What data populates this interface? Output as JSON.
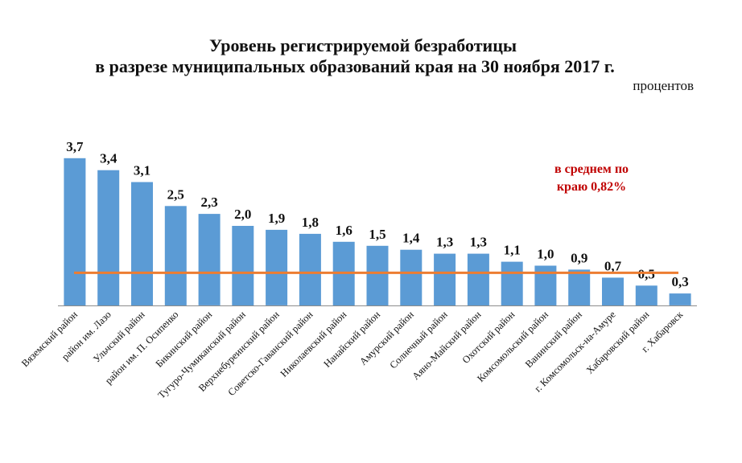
{
  "title_line1": "Уровень регистрируемой безработицы",
  "title_line2": "в разрезе муниципальных образований края на 30 ноября 2017 г.",
  "units": "процентов",
  "average_note_line1": "в среднем по",
  "average_note_line2": "краю 0,82%",
  "colors": {
    "bar": "#5b9bd5",
    "average_line": "#ed7d31",
    "note": "#c00000",
    "axis": "#8c8c8c"
  },
  "chart_data": {
    "type": "bar",
    "title": "Уровень регистрируемой безработицы в разрезе муниципальных образований края на 30 ноября 2017 г.",
    "ylabel": "процентов",
    "xlabel": "",
    "ylim": [
      0,
      4.0
    ],
    "average": 0.82,
    "average_label": "в среднем по краю 0,82%",
    "categories": [
      "Вяземский район",
      "район им. Лазо",
      "Ульчский район",
      "район им. П. Осипенко",
      "Бикинский район",
      "Тугуро-Чумиканский район",
      "Верхнебуреинский район",
      "Советско-Гаванский район",
      "Николаевский район",
      "Нанайский район",
      "Амурский район",
      "Солнечный район",
      "Аяно-Майский район",
      "Охотский район",
      "Комсомольский район",
      "Ванинский район",
      "г. Комсомольск-на-Амуре",
      "Хабаровский район",
      "г. Хабаровск"
    ],
    "values": [
      3.7,
      3.4,
      3.1,
      2.5,
      2.3,
      2.0,
      1.9,
      1.8,
      1.6,
      1.5,
      1.4,
      1.3,
      1.3,
      1.1,
      1.0,
      0.9,
      0.7,
      0.5,
      0.3
    ],
    "value_labels": [
      "3,7",
      "3,4",
      "3,1",
      "2,5",
      "2,3",
      "2,0",
      "1,9",
      "1,8",
      "1,6",
      "1,5",
      "1,4",
      "1,3",
      "1,3",
      "1,1",
      "1,0",
      "0,9",
      "0,7",
      "0,5",
      "0,3"
    ]
  }
}
